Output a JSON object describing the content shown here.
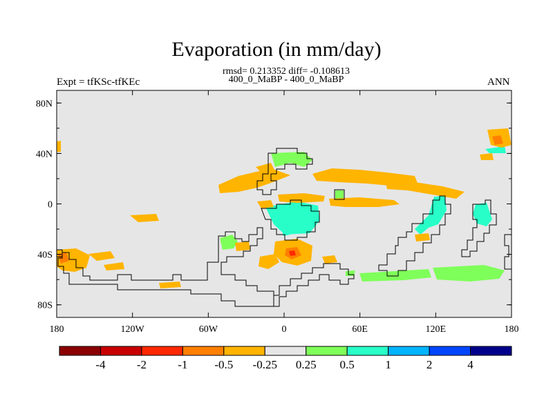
{
  "title": "Evaporation (in mm/day)",
  "stats": "rmsd= 0.213352 diff= -0.108613",
  "subtitle": "400_0_MaBP - 400_0_MaBP",
  "expt_label": "Expt = tfKSc-tfKEc",
  "season": "ANN",
  "map": {
    "projection": "cylindrical-equidistant",
    "lon_range": [
      -180,
      180
    ],
    "lat_range": [
      -90,
      90
    ],
    "background_color": "#e6e6e6",
    "coastline_color": "#000000",
    "x_ticks": [
      "180",
      "120W",
      "60W",
      "0",
      "60E",
      "120E",
      "180"
    ],
    "y_ticks": [
      "80N",
      "40N",
      "0",
      "40S",
      "80S"
    ]
  },
  "colorbar": {
    "colors": [
      "#8b0000",
      "#c80000",
      "#ff2800",
      "#ff7f00",
      "#ffb400",
      "#e6e6e6",
      "#7fff5a",
      "#28ffc8",
      "#00b4ff",
      "#0046ff",
      "#00008b"
    ],
    "labels": [
      "-4",
      "-2",
      "-1",
      "-0.5",
      "-0.25",
      "0.25",
      "0.5",
      "1",
      "2",
      "4"
    ]
  },
  "fill_colors": {
    "neg_025": "#ffb400",
    "neg_05": "#ff7f00",
    "neg_1": "#ff2800",
    "pos_025": "#7fff5a",
    "pos_05": "#28ffc8"
  }
}
